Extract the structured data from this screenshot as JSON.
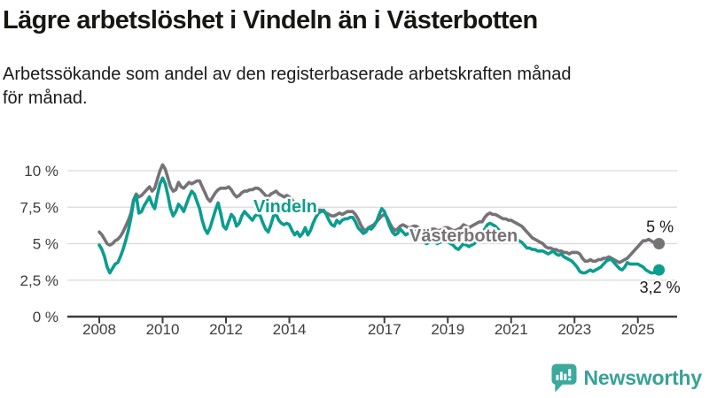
{
  "header": {
    "title": "Lägre arbetslöshet i Vindeln än i Västerbotten",
    "subtitle_line1": "Arbetssökande som andel av den registerbaserade arbetskraften månad",
    "subtitle_line2": "för månad."
  },
  "footer": {
    "brand": "Newsworthy",
    "logo_icon": "bar-chart-speech-bubble-icon",
    "brand_color": "#38a295"
  },
  "chart_data": {
    "type": "line",
    "title": "Lägre arbetslöshet i Vindeln än i Västerbotten",
    "xlabel": "",
    "ylabel": "Arbetssökande som andel av den registerbaserade arbetskraften",
    "x_unit": "month",
    "x_start": "2008-01",
    "x_end": "2025-09",
    "grid": "horizontal",
    "legend_position": "inline-labels",
    "ylim": [
      0,
      10.8
    ],
    "y_tick_labels": [
      "10 %",
      "7,5 %",
      "5 %",
      "2,5 %",
      "0 %"
    ],
    "y_tick_values": [
      10,
      7.5,
      5,
      2.5,
      0
    ],
    "x_tick_labels": [
      "2008",
      "2010",
      "2012",
      "2014",
      "2017",
      "2019",
      "2021",
      "2023",
      "2025"
    ],
    "x_tick_years": [
      2008,
      2010,
      2012,
      2014,
      2017,
      2019,
      2021,
      2023,
      2025
    ],
    "series": [
      {
        "name": "Västerbotten",
        "color": "#767276",
        "end_label": "5 %",
        "end_value": 5.0,
        "values": [
          5.8,
          5.6,
          5.3,
          5.0,
          4.9,
          5.0,
          5.2,
          5.3,
          5.5,
          5.8,
          6.2,
          6.6,
          7.1,
          8.0,
          8.4,
          8.2,
          8.3,
          8.5,
          8.7,
          8.9,
          8.6,
          8.8,
          9.4,
          10.0,
          10.4,
          10.1,
          9.5,
          8.9,
          8.6,
          8.7,
          9.2,
          8.9,
          8.8,
          9.0,
          9.2,
          9.1,
          9.2,
          9.3,
          9.3,
          8.9,
          8.5,
          8.1,
          7.9,
          8.2,
          8.5,
          8.7,
          8.8,
          8.8,
          8.8,
          8.9,
          8.7,
          8.4,
          8.2,
          8.3,
          8.5,
          8.6,
          8.6,
          8.7,
          8.7,
          8.8,
          8.8,
          8.7,
          8.5,
          8.3,
          8.2,
          8.4,
          8.5,
          8.6,
          8.4,
          8.3,
          8.2,
          8.3,
          8.2,
          8.0,
          7.8,
          7.6,
          7.4,
          7.3,
          7.4,
          7.3,
          7.2,
          7.2,
          7.2,
          7.3,
          7.3,
          7.2,
          7.1,
          7.0,
          6.9,
          6.9,
          7.0,
          7.1,
          7.0,
          7.1,
          7.2,
          7.2,
          7.2,
          7.0,
          6.7,
          6.3,
          6.0,
          5.9,
          6.1,
          6.2,
          6.3,
          6.5,
          6.7,
          6.9,
          7.0,
          6.8,
          6.4,
          6.1,
          5.9,
          6.0,
          6.2,
          6.3,
          6.2,
          6.1,
          6.1,
          6.2,
          6.2,
          6.1,
          5.9,
          5.8,
          5.7,
          5.8,
          6.0,
          6.0,
          5.9,
          5.9,
          6.0,
          6.1,
          6.1,
          6.0,
          5.9,
          5.9,
          6.0,
          6.1,
          6.3,
          6.2,
          6.1,
          6.2,
          6.3,
          6.4,
          6.5,
          6.5,
          6.8,
          7.0,
          7.1,
          7.0,
          7.0,
          6.9,
          6.8,
          6.7,
          6.7,
          6.6,
          6.6,
          6.5,
          6.4,
          6.3,
          6.2,
          6.0,
          5.8,
          5.6,
          5.4,
          5.3,
          5.2,
          5.1,
          5.0,
          4.8,
          4.7,
          4.7,
          4.6,
          4.6,
          4.5,
          4.5,
          4.4,
          4.4,
          4.3,
          4.4,
          4.4,
          4.4,
          4.3,
          4.0,
          3.8,
          3.8,
          3.9,
          3.8,
          3.8,
          3.9,
          3.9,
          4.0,
          4.0,
          4.1,
          4.0,
          3.9,
          3.8,
          3.7,
          3.8,
          3.9,
          4.0,
          4.2,
          4.4,
          4.6,
          4.8,
          5.0,
          5.2,
          5.2,
          5.3,
          5.2,
          5.1,
          5.0,
          5.0
        ]
      },
      {
        "name": "Vindeln",
        "color": "#0b9d8f",
        "end_label": "3,2 %",
        "end_value": 3.2,
        "values": [
          4.9,
          4.6,
          4.1,
          3.4,
          3.0,
          3.3,
          3.6,
          3.7,
          4.1,
          4.6,
          5.2,
          5.9,
          6.8,
          7.9,
          8.3,
          7.1,
          7.2,
          7.6,
          7.9,
          8.2,
          7.7,
          7.4,
          8.3,
          9.1,
          9.5,
          9.1,
          8.3,
          7.4,
          6.9,
          7.2,
          7.7,
          7.5,
          7.2,
          7.7,
          8.2,
          8.6,
          8.4,
          7.9,
          7.4,
          6.6,
          6.0,
          5.7,
          6.1,
          6.7,
          7.3,
          7.8,
          7.1,
          6.2,
          6.0,
          6.5,
          7.0,
          6.8,
          6.2,
          6.4,
          6.9,
          7.2,
          7.0,
          6.8,
          6.6,
          6.9,
          7.0,
          6.9,
          6.4,
          6.0,
          5.8,
          6.3,
          6.9,
          7.0,
          6.6,
          6.4,
          6.3,
          6.4,
          6.3,
          5.9,
          5.6,
          5.8,
          5.5,
          5.7,
          6.1,
          5.6,
          5.9,
          6.4,
          6.8,
          7.1,
          7.2,
          7.3,
          7.0,
          6.6,
          6.3,
          6.2,
          6.6,
          6.4,
          6.6,
          6.7,
          6.7,
          6.8,
          6.8,
          6.5,
          6.1,
          5.9,
          5.7,
          5.8,
          6.1,
          6.0,
          6.2,
          6.5,
          7.0,
          7.4,
          7.2,
          6.7,
          6.2,
          5.8,
          5.6,
          5.7,
          6.0,
          5.8,
          5.6,
          5.7,
          5.8,
          5.9,
          5.8,
          5.6,
          5.3,
          5.1,
          5.0,
          5.1,
          5.3,
          5.2,
          5.0,
          5.1,
          5.2,
          5.3,
          5.2,
          5.0,
          4.9,
          4.7,
          4.6,
          4.8,
          5.0,
          4.9,
          4.8,
          4.9,
          5.0,
          5.2,
          5.4,
          5.6,
          6.0,
          6.3,
          6.4,
          6.3,
          6.2,
          6.0,
          5.8,
          5.7,
          5.6,
          5.5,
          5.5,
          5.4,
          5.3,
          5.2,
          5.1,
          4.9,
          4.7,
          4.7,
          4.6,
          4.6,
          4.5,
          4.5,
          4.5,
          4.4,
          4.3,
          4.4,
          4.5,
          4.3,
          4.2,
          4.3,
          4.1,
          4.0,
          3.9,
          3.8,
          3.6,
          3.4,
          3.1,
          3.0,
          3.0,
          3.1,
          3.2,
          3.1,
          3.2,
          3.3,
          3.4,
          3.6,
          3.8,
          3.9,
          3.9,
          3.7,
          3.5,
          3.3,
          3.2,
          3.4,
          3.7,
          3.6,
          3.6,
          3.6,
          3.6,
          3.5,
          3.4,
          3.2,
          3.1,
          3.0,
          3.0,
          3.1,
          3.2
        ]
      }
    ]
  }
}
